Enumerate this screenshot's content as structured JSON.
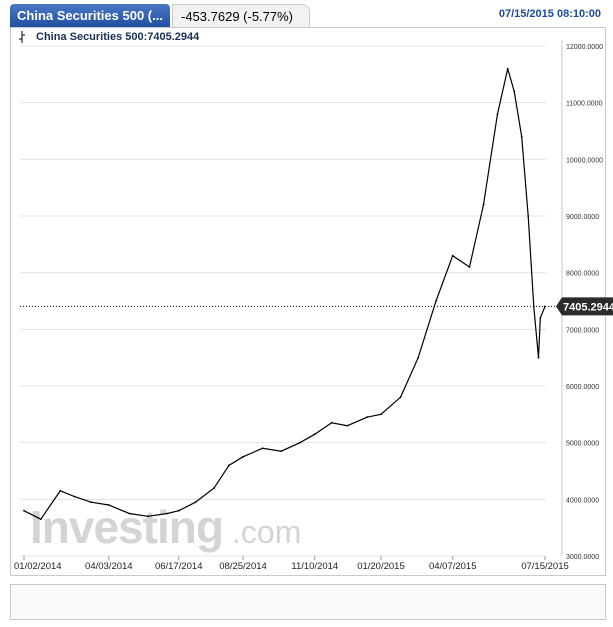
{
  "header": {
    "instrument_tab": "China Securities 500 (...",
    "change_text": "-453.7629 (-5.77%)",
    "timestamp": "07/15/2015 08:10:00"
  },
  "legend": {
    "label": "China Securities 500:7405.2944"
  },
  "watermark": {
    "text_main": "Investing",
    "text_suffix": ".com"
  },
  "colors": {
    "accent": "#1f4e9e",
    "line": "#000000",
    "navigator_fill": "#5b8ee0",
    "price_tag": "#2b2b2b"
  },
  "chart_data": {
    "type": "line",
    "title": "China Securities 500",
    "last_value_label": "7405.2944",
    "last_value": 7405.2944,
    "ylim": [
      3000,
      12000
    ],
    "y_ticks": [
      3000,
      4000,
      5000,
      6000,
      7000,
      8000,
      9000,
      10000,
      11000,
      12000
    ],
    "y_tick_labels": [
      "3000.0000",
      "4000.0000",
      "5000.0000",
      "6000.0000",
      "7000.0000",
      "8000.0000",
      "9000.0000",
      "10000.0000",
      "11000.0000",
      "12000.0000"
    ],
    "x_tick_labels": [
      "01/02/2014",
      "04/03/2014",
      "06/17/2014",
      "08/25/2014",
      "11/10/2014",
      "01/20/2015",
      "04/07/2015",
      "07/15/2015"
    ],
    "x": [
      "2014-01-02",
      "2014-01-20",
      "2014-02-10",
      "2014-02-25",
      "2014-03-15",
      "2014-04-03",
      "2014-04-25",
      "2014-05-15",
      "2014-06-05",
      "2014-06-17",
      "2014-07-05",
      "2014-07-25",
      "2014-08-10",
      "2014-08-25",
      "2014-09-15",
      "2014-10-05",
      "2014-10-25",
      "2014-11-10",
      "2014-11-28",
      "2014-12-15",
      "2015-01-05",
      "2015-01-20",
      "2015-02-10",
      "2015-03-01",
      "2015-03-20",
      "2015-04-07",
      "2015-04-25",
      "2015-05-10",
      "2015-05-25",
      "2015-06-05",
      "2015-06-12",
      "2015-06-20",
      "2015-06-27",
      "2015-07-03",
      "2015-07-08",
      "2015-07-10",
      "2015-07-15"
    ],
    "series": [
      {
        "values": [
          3800,
          3650,
          4150,
          4050,
          3950,
          3900,
          3750,
          3700,
          3750,
          3800,
          3950,
          4200,
          4600,
          4750,
          4900,
          4850,
          5000,
          5150,
          5350,
          5300,
          5450,
          5500,
          5800,
          6500,
          7500,
          8300,
          8100,
          9200,
          10800,
          11600,
          11200,
          10400,
          9000,
          7400,
          6500,
          7200,
          7405
        ]
      }
    ],
    "grid": true
  }
}
